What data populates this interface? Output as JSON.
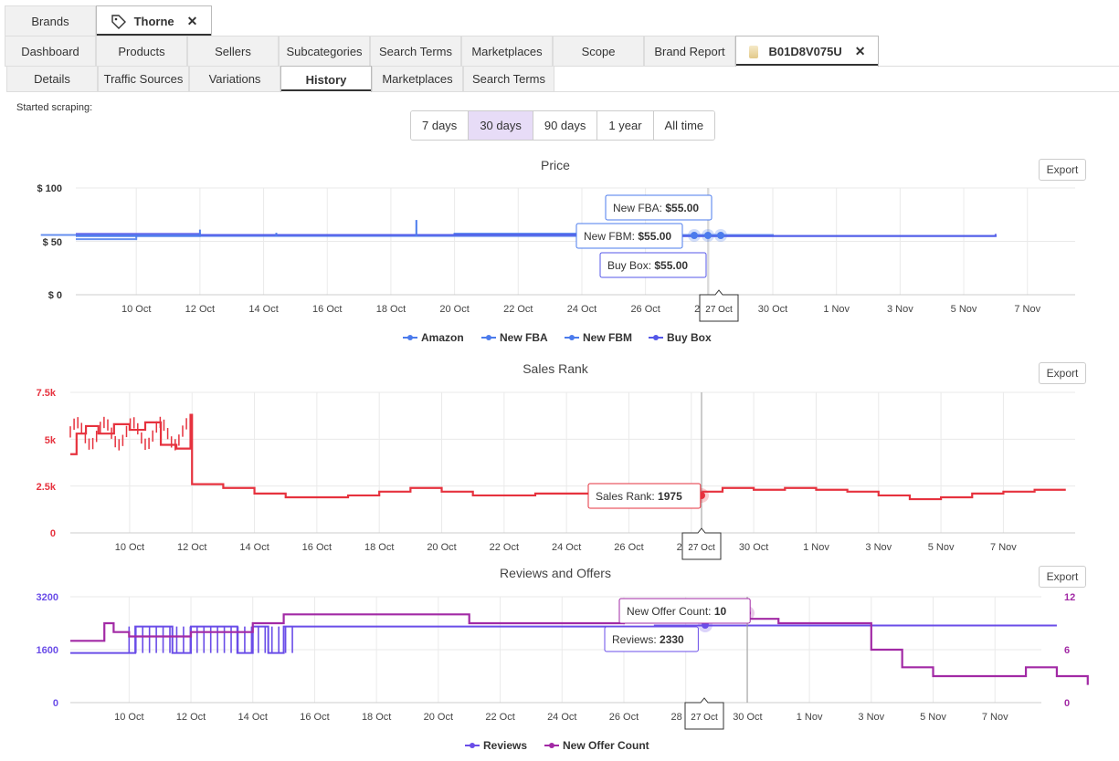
{
  "top_tabs": [
    {
      "label": "Brands",
      "active": false
    },
    {
      "label": "Thorne",
      "active": true,
      "icon": "tag-icon",
      "closable": true
    }
  ],
  "main_tabs": [
    {
      "label": "Dashboard"
    },
    {
      "label": "Products"
    },
    {
      "label": "Sellers"
    },
    {
      "label": "Subcategories"
    },
    {
      "label": "Search Terms"
    },
    {
      "label": "Marketplaces"
    },
    {
      "label": "Scope"
    },
    {
      "label": "Brand Report"
    },
    {
      "label": "B01D8V075U",
      "active": true,
      "icon": "product-thumbnail-icon",
      "closable": true
    }
  ],
  "sub_tabs": [
    {
      "label": "Details"
    },
    {
      "label": "Traffic Sources"
    },
    {
      "label": "Variations"
    },
    {
      "label": "History",
      "active": true
    },
    {
      "label": "Marketplaces"
    },
    {
      "label": "Search Terms"
    }
  ],
  "started_scraping": "Started scraping:",
  "periods": [
    {
      "label": "7 days"
    },
    {
      "label": "30 days",
      "selected": true
    },
    {
      "label": "90 days"
    },
    {
      "label": "1 year"
    },
    {
      "label": "All time"
    }
  ],
  "export_label": "Export",
  "x_ticks": [
    "10 Oct",
    "12 Oct",
    "14 Oct",
    "16 Oct",
    "18 Oct",
    "20 Oct",
    "22 Oct",
    "24 Oct",
    "26 Oct",
    "28 Oct",
    "30 Oct",
    "1 Nov",
    "3 Nov",
    "5 Nov",
    "7 Nov"
  ],
  "hover_label": "27 Oct",
  "chart_data": [
    {
      "type": "line",
      "title": "Price",
      "y_ticks": [
        "$ 0",
        "$ 50",
        "$ 100"
      ],
      "ylim": [
        0,
        100
      ],
      "xlim": [
        "2024-10-08",
        "2024-11-07"
      ],
      "series": [
        {
          "name": "Amazon",
          "color": "#4b7bec",
          "values": [
            [
              8.1,
              52
            ],
            [
              9.0,
              52
            ],
            [
              10.0,
              56
            ],
            [
              12.0,
              56
            ],
            [
              20.0,
              57
            ],
            [
              26.5,
              55
            ],
            [
              30.0,
              56
            ],
            [
              7.0,
              56
            ]
          ]
        },
        {
          "name": "New FBA",
          "color": "#4b7bec",
          "values": [
            [
              8.1,
              55
            ],
            [
              12.0,
              56
            ],
            [
              20.0,
              57
            ],
            [
              27.0,
              55
            ],
            [
              37.0,
              56
            ]
          ]
        },
        {
          "name": "New FBM",
          "color": "#4b7bec",
          "values": [
            [
              8.1,
              55
            ],
            [
              27.0,
              55
            ],
            [
              37.0,
              56
            ]
          ]
        },
        {
          "name": "Buy Box",
          "color": "#5457e8",
          "values": [
            [
              8.1,
              57
            ],
            [
              12.0,
              56
            ],
            [
              27.0,
              55
            ],
            [
              37.0,
              57
            ]
          ]
        }
      ],
      "tooltips": [
        {
          "label": "New FBA: ",
          "value": "$55.00"
        },
        {
          "label": "New FBM: ",
          "value": "$55.00"
        },
        {
          "label": "Buy Box: ",
          "value": "$55.00"
        }
      ],
      "legend": [
        "Amazon",
        "New FBA",
        "New FBM",
        "Buy Box"
      ],
      "legend_position": "bottom"
    },
    {
      "type": "line",
      "title": "Sales Rank",
      "y_ticks": [
        "0",
        "2.5k",
        "5k",
        "7.5k"
      ],
      "ylim": [
        0,
        7500
      ],
      "series": [
        {
          "name": "Sales Rank",
          "color": "#e6323e",
          "values": [
            [
              8.1,
              4200
            ],
            [
              8.3,
              5300
            ],
            [
              8.6,
              5700
            ],
            [
              9.0,
              5300
            ],
            [
              9.5,
              5800
            ],
            [
              10.0,
              5500
            ],
            [
              10.5,
              5900
            ],
            [
              11.0,
              4700
            ],
            [
              11.5,
              4500
            ],
            [
              11.9,
              4500
            ],
            [
              11.95,
              6300
            ],
            [
              12.0,
              2600
            ],
            [
              13.0,
              2400
            ],
            [
              14.0,
              2100
            ],
            [
              15.0,
              1900
            ],
            [
              16.0,
              1900
            ],
            [
              17.0,
              2000
            ],
            [
              18.0,
              2200
            ],
            [
              19.0,
              2400
            ],
            [
              20.0,
              2200
            ],
            [
              21.0,
              2000
            ],
            [
              22.0,
              2000
            ],
            [
              23.0,
              2100
            ],
            [
              24.0,
              2100
            ],
            [
              25.0,
              2200
            ],
            [
              26.0,
              2100
            ],
            [
              27.0,
              1975
            ],
            [
              28.0,
              2200
            ],
            [
              29.0,
              2400
            ],
            [
              30.0,
              2300
            ],
            [
              31.0,
              2400
            ],
            [
              32.0,
              2300
            ],
            [
              33.0,
              2200
            ],
            [
              34.0,
              2000
            ],
            [
              35.0,
              1800
            ],
            [
              36.0,
              1900
            ],
            [
              37.0,
              2100
            ],
            [
              38.0,
              2200
            ],
            [
              39.0,
              2300
            ],
            [
              40.0,
              2300
            ]
          ]
        }
      ],
      "tooltips": [
        {
          "label": "Sales Rank: ",
          "value": "1975"
        }
      ]
    },
    {
      "type": "line",
      "title": "Reviews and Offers",
      "y_ticks_left": [
        "0",
        "1600",
        "3200"
      ],
      "y_ticks_right": [
        "0",
        "6",
        "12"
      ],
      "ylim_left": [
        0,
        3200
      ],
      "ylim_right": [
        0,
        12
      ],
      "series": [
        {
          "name": "Reviews",
          "color": "#6a4de8",
          "axis": "left",
          "values": [
            [
              8.1,
              1500
            ],
            [
              10.0,
              1500
            ],
            [
              10.2,
              2300
            ],
            [
              11.0,
              2300
            ],
            [
              11.4,
              1500
            ],
            [
              12.0,
              2300
            ],
            [
              13.0,
              2300
            ],
            [
              13.5,
              1500
            ],
            [
              14.0,
              2300
            ],
            [
              14.5,
              1500
            ],
            [
              15.0,
              2300
            ],
            [
              16.0,
              2300
            ],
            [
              20.0,
              2300
            ],
            [
              27.0,
              2330
            ],
            [
              40.0,
              2330
            ]
          ]
        },
        {
          "name": "New Offer Count",
          "color": "#a22aa5",
          "axis": "right",
          "values": [
            [
              8.1,
              7
            ],
            [
              9.0,
              7
            ],
            [
              9.2,
              9
            ],
            [
              9.5,
              8
            ],
            [
              10.0,
              7.5
            ],
            [
              11.0,
              7.5
            ],
            [
              12.0,
              8
            ],
            [
              13.5,
              8
            ],
            [
              14.0,
              9
            ],
            [
              15.0,
              10
            ],
            [
              18.0,
              10
            ],
            [
              21.0,
              9
            ],
            [
              23.0,
              9
            ],
            [
              26.0,
              9.5
            ],
            [
              27.0,
              10
            ],
            [
              29.0,
              9.5
            ],
            [
              31.0,
              9
            ],
            [
              32.0,
              9
            ],
            [
              34.0,
              6
            ],
            [
              35.0,
              4
            ],
            [
              36.0,
              3
            ],
            [
              38.0,
              3
            ],
            [
              39.0,
              4
            ],
            [
              40.0,
              3
            ],
            [
              41.0,
              2
            ]
          ]
        }
      ],
      "tooltips": [
        {
          "label": "New Offer Count: ",
          "value": "10"
        },
        {
          "label": "Reviews: ",
          "value": "2330"
        }
      ],
      "legend": [
        "Reviews",
        "New Offer Count"
      ],
      "legend_position": "bottom"
    }
  ]
}
